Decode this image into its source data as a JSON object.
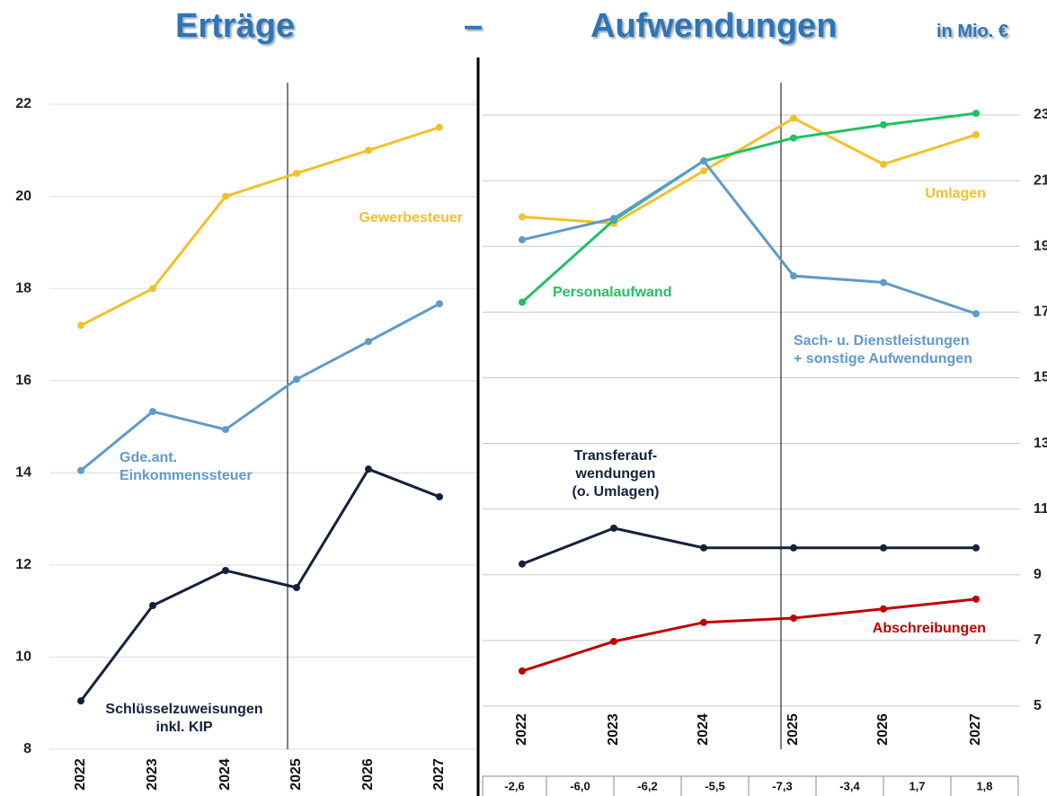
{
  "title_left": "Erträge",
  "title_dash": "–",
  "title_right": "Aufwendungen",
  "unit": "in Mio. €",
  "chart_data": [
    {
      "type": "line",
      "categories": [
        "2022",
        "2023",
        "2024",
        "2025",
        "2026",
        "2027"
      ],
      "ylim": [
        8,
        22
      ],
      "yticks": [
        8,
        10,
        12,
        14,
        16,
        18,
        20,
        22
      ],
      "grid": true,
      "series": [
        {
          "name": "Gewerbesteuer",
          "color": "#f2c029",
          "values": [
            17.2,
            18.0,
            20.0,
            20.5,
            21.0,
            21.5
          ]
        },
        {
          "name": "Gde.ant.\nEinkommenssteuer",
          "color": "#5f9acb",
          "values": [
            14.05,
            15.33,
            14.94,
            16.03,
            16.85,
            17.67
          ]
        },
        {
          "name": "Schlüsselzuweisungen\ninkl. KIP",
          "color": "#14213d",
          "values": [
            9.05,
            11.12,
            11.88,
            11.51,
            14.08,
            13.48
          ]
        }
      ]
    },
    {
      "type": "line",
      "categories": [
        "2022",
        "2023",
        "2024",
        "2025",
        "2026",
        "2027"
      ],
      "ylim": [
        5,
        23
      ],
      "yticks": [
        5,
        7,
        9,
        11,
        13,
        15,
        17,
        19,
        21,
        23
      ],
      "grid": true,
      "series": [
        {
          "name": "Umlagen",
          "color": "#f2c029",
          "values": [
            19.9,
            19.7,
            21.3,
            22.9,
            21.5,
            22.4
          ]
        },
        {
          "name": "Personalaufwand",
          "color": "#22c063",
          "values": [
            17.3,
            19.8,
            21.6,
            22.3,
            22.7,
            23.05
          ]
        },
        {
          "name": "Sach- u. Dienstleistungen\n+ sonstige Aufwendungen",
          "color": "#5f9acb",
          "values": [
            19.2,
            19.85,
            21.6,
            18.1,
            17.9,
            16.95
          ]
        },
        {
          "name": "Transferauf-\nwendungen\n(o. Umlagen)",
          "color": "#14213d",
          "values": [
            9.33,
            10.42,
            9.82,
            9.82,
            9.82,
            9.82
          ]
        },
        {
          "name": "Abschreibungen",
          "color": "#c00000",
          "values": [
            6.07,
            6.97,
            7.55,
            7.68,
            7.96,
            8.26
          ]
        }
      ]
    }
  ],
  "footer_row": [
    "-2,6",
    "-6,0",
    "-6,2",
    "-5,5",
    "-7,3",
    "-3,4",
    "1,7",
    "1,8"
  ]
}
